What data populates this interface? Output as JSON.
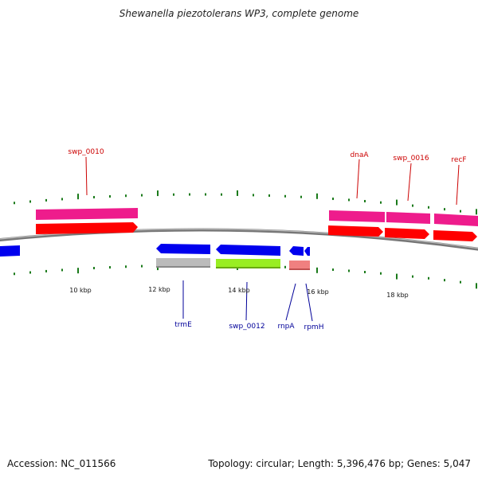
{
  "title": "Shewanella piezotolerans WP3, complete genome",
  "footer": {
    "accession": "Accession: NC_011566",
    "summary": "Topology: circular; Length: 5,396,476 bp; Genes: 5,047"
  },
  "colors": {
    "forward_label": "#cc0000",
    "reverse_label": "#000099",
    "tick": "#1a7a1a",
    "backbone": "#888888",
    "cds_forward": "#ff0000",
    "gene_forward": "#ee1c8c",
    "cds_reverse": "#0000ee",
    "gene_reverse_grey": "#bbbbbb",
    "gene_reverse_green": "#99ee22",
    "gene_reverse_pink": "#f08080"
  },
  "scale_labels": [
    "10 kbp",
    "12 kbp",
    "14 kbp",
    "16 kbp",
    "18 kbp"
  ],
  "forward_gene_labels": [
    "swp_0010",
    "dnaA",
    "swp_0016",
    "recF"
  ],
  "reverse_gene_labels": [
    "trmE",
    "swp_0012",
    "rnpA",
    "rpmH"
  ]
}
